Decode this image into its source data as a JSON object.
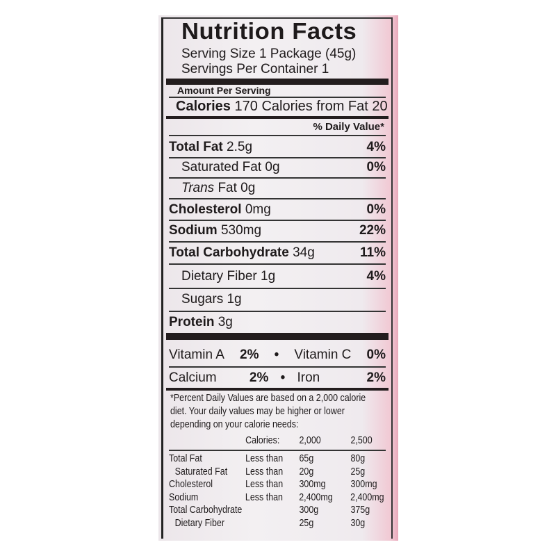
{
  "title": "Nutrition Facts",
  "serving_size": "Serving Size 1 Package (45g)",
  "servings_per_container": "Servings Per Container 1",
  "amount_per_serving": "Amount Per Serving",
  "calories": {
    "label": "Calories",
    "value": "170",
    "from_fat": "Calories from Fat 20"
  },
  "daily_value_header": "% Daily Value*",
  "nutrients": [
    {
      "name": "Total Fat",
      "amount": "2.5g",
      "dv": "4%"
    },
    {
      "name": "Saturated Fat",
      "amount": "0g",
      "dv": "0%"
    },
    {
      "name": "Trans",
      "amount": "Fat 0g",
      "dv": ""
    },
    {
      "name": "Cholesterol",
      "amount": "0mg",
      "dv": "0%"
    },
    {
      "name": "Sodium",
      "amount": "530mg",
      "dv": "22%"
    },
    {
      "name": "Total Carbohydrate",
      "amount": "34g",
      "dv": "11%"
    },
    {
      "name": "Dietary Fiber",
      "amount": "1g",
      "dv": "4%"
    },
    {
      "name": "Sugars",
      "amount": "1g",
      "dv": ""
    },
    {
      "name": "Protein",
      "amount": "3g",
      "dv": ""
    }
  ],
  "vitamins": [
    {
      "left_name": "Vitamin A",
      "left_dv": "2%",
      "bullet": "•",
      "right_name": "Vitamin C",
      "right_dv": "0%"
    },
    {
      "left_name": "Calcium",
      "left_dv": "2%",
      "bullet": "•",
      "right_name": "Iron",
      "right_dv": "2%"
    }
  ],
  "footnote": [
    "*Percent Daily Values are based on a 2,000 calorie",
    "diet. Your daily values may be higher or lower",
    "depending on your calorie needs:"
  ],
  "reference_table": {
    "header": [
      "",
      "Calories:",
      "2,000",
      "2,500"
    ],
    "rows": [
      [
        "Total Fat",
        "Less than",
        "65g",
        "80g"
      ],
      [
        "Saturated Fat",
        "Less than",
        "20g",
        "25g"
      ],
      [
        "Cholesterol",
        "Less than",
        "300mg",
        "300mg"
      ],
      [
        "Sodium",
        "Less than",
        "2,400mg",
        "2,400mg"
      ],
      [
        "Total Carbohydrate",
        "",
        "300g",
        "375g"
      ],
      [
        "Dietary Fiber",
        "",
        "25g",
        "30g"
      ]
    ]
  }
}
